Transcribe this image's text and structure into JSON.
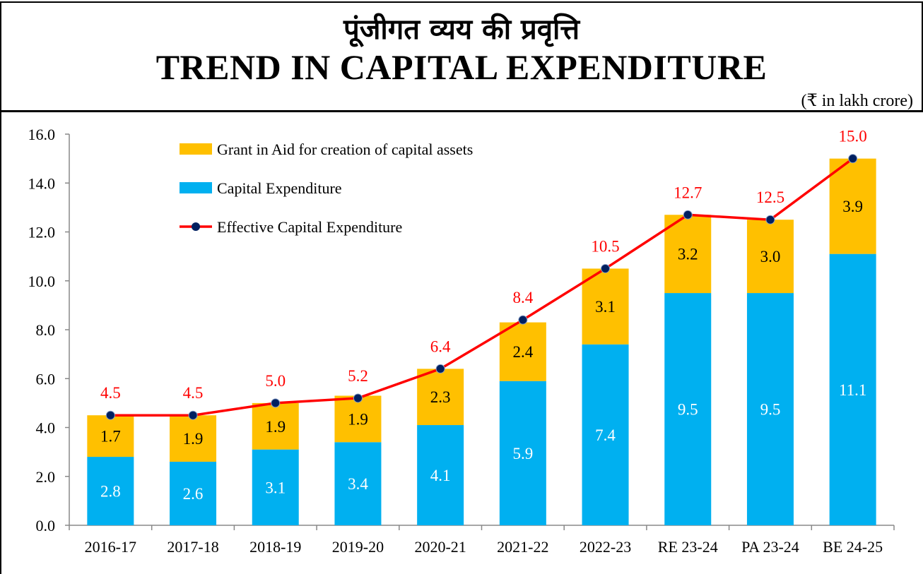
{
  "header": {
    "title_hindi": "पूंजीगत व्यय की प्रवृत्ति",
    "title_english": "TREND IN CAPITAL EXPENDITURE",
    "unit": "(₹ in lakh crore)"
  },
  "chart_data": {
    "type": "bar",
    "stacked": true,
    "categories": [
      "2016-17",
      "2017-18",
      "2018-19",
      "2019-20",
      "2020-21",
      "2021-22",
      "2022-23",
      "RE 23-24",
      "PA 23-24",
      "BE 24-25"
    ],
    "series": [
      {
        "name": "Capital Expenditure",
        "type": "bar",
        "color": "#00B0F0",
        "values": [
          2.8,
          2.6,
          3.1,
          3.4,
          4.1,
          5.9,
          7.4,
          9.5,
          9.5,
          11.1
        ]
      },
      {
        "name": "Grant in Aid for creation of capital assets",
        "type": "bar",
        "color": "#FFC000",
        "values": [
          1.7,
          1.9,
          1.9,
          1.9,
          2.3,
          2.4,
          3.1,
          3.2,
          3.0,
          3.9
        ]
      },
      {
        "name": "Effective Capital Expenditure",
        "type": "line",
        "color": "#FF0000",
        "marker_color": "#002060",
        "values": [
          4.5,
          4.5,
          5.0,
          5.2,
          6.4,
          8.4,
          10.5,
          12.7,
          12.5,
          15.0
        ]
      }
    ],
    "legend_order": [
      "Grant in Aid for creation of capital assets",
      "Capital Expenditure",
      "Effective Capital Expenditure"
    ],
    "legend_placement": "top-left",
    "yticks": [
      "0.0",
      "2.0",
      "4.0",
      "6.0",
      "8.0",
      "10.0",
      "12.0",
      "14.0",
      "16.0"
    ],
    "ylim": [
      0,
      16
    ],
    "grid": false
  }
}
